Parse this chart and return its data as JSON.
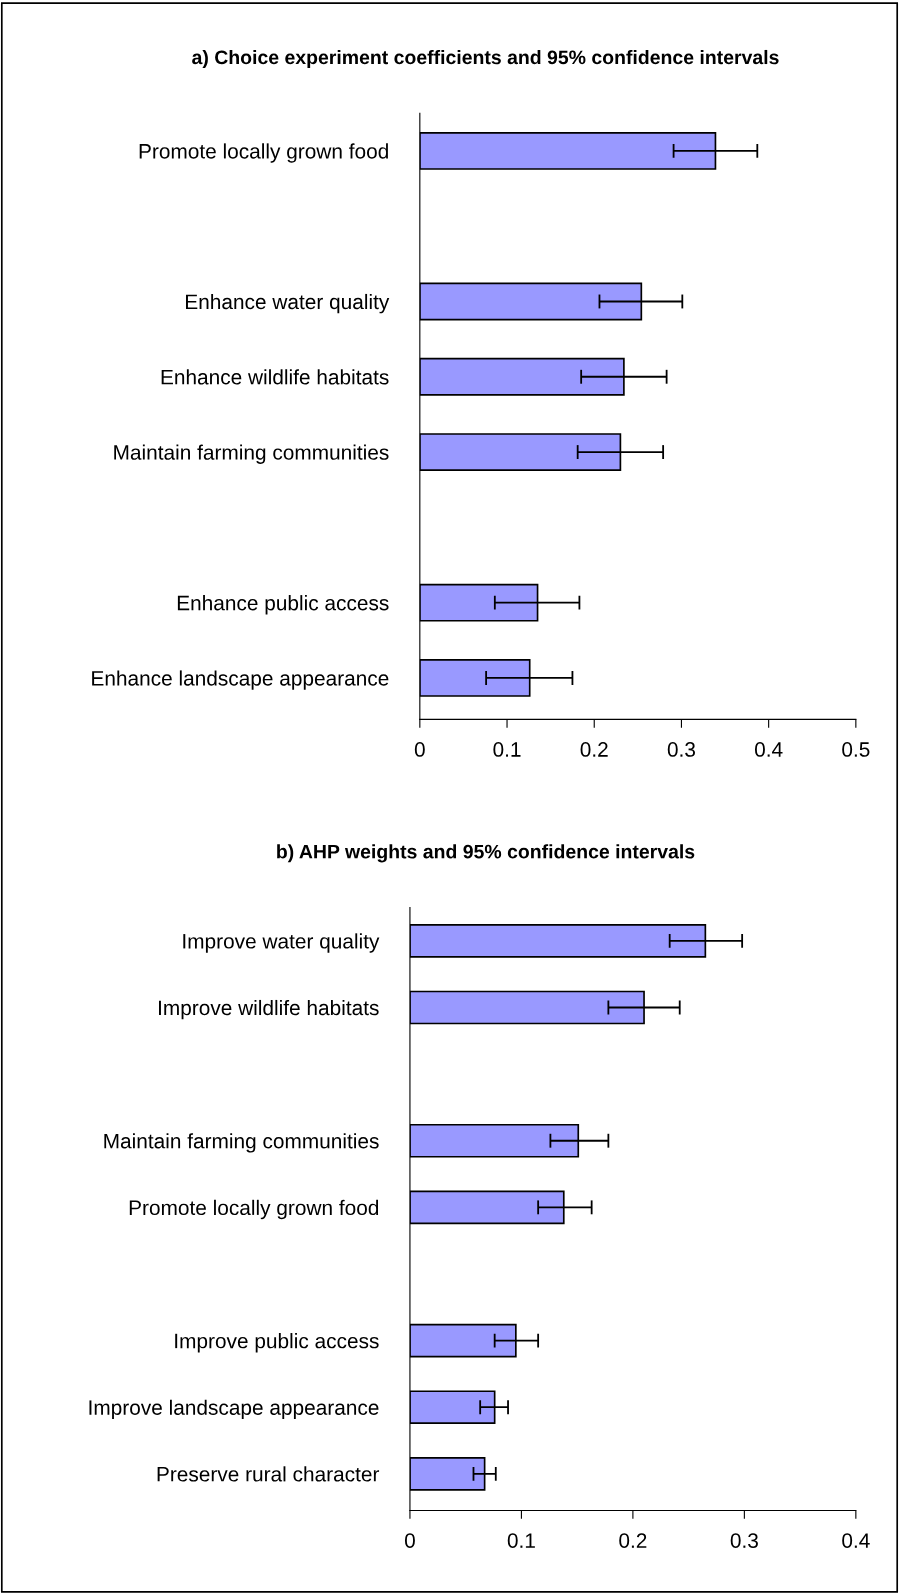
{
  "chart_data": [
    {
      "type": "bar",
      "orientation": "horizontal",
      "title": "a) Choice experiment coefficients and 95% confidence intervals",
      "categories": [
        "Promote locally grown food",
        null,
        "Enhance water quality",
        "Enhance wildlife habitats",
        "Maintain farming communities",
        null,
        "Enhance public access",
        "Enhance landscape appearance"
      ],
      "values": [
        0.339,
        null,
        0.254,
        0.234,
        0.23,
        null,
        0.135,
        0.126
      ],
      "errors": [
        [
          0.291,
          0.387
        ],
        null,
        [
          0.206,
          0.301
        ],
        [
          0.185,
          0.283
        ],
        [
          0.181,
          0.279
        ],
        null,
        [
          0.086,
          0.183
        ],
        [
          0.076,
          0.175
        ]
      ],
      "color": "#9999ff",
      "xlim": [
        0,
        0.5
      ],
      "xticks": [
        0,
        0.1,
        0.2,
        0.3,
        0.4,
        0.5
      ],
      "grid": false,
      "legend": false
    },
    {
      "type": "bar",
      "orientation": "horizontal",
      "title": "b) AHP weights and 95% confidence intervals",
      "categories": [
        "Improve water quality",
        "Improve wildlife habitats",
        null,
        "Maintain farming communities",
        "Promote locally grown food",
        null,
        "Improve public access",
        "Improve landscape appearance",
        "Preserve rural character"
      ],
      "values": [
        0.265,
        0.21,
        null,
        0.151,
        0.138,
        null,
        0.095,
        0.076,
        0.067
      ],
      "errors": [
        [
          0.233,
          0.298
        ],
        [
          0.178,
          0.242
        ],
        null,
        [
          0.126,
          0.178
        ],
        [
          0.115,
          0.163
        ],
        null,
        [
          0.076,
          0.115
        ],
        [
          0.063,
          0.088
        ],
        [
          0.057,
          0.077
        ]
      ],
      "color": "#9999ff",
      "xlim": [
        0,
        0.4
      ],
      "xticks": [
        0,
        0.1,
        0.2,
        0.3,
        0.4
      ],
      "grid": false,
      "legend": false
    }
  ]
}
